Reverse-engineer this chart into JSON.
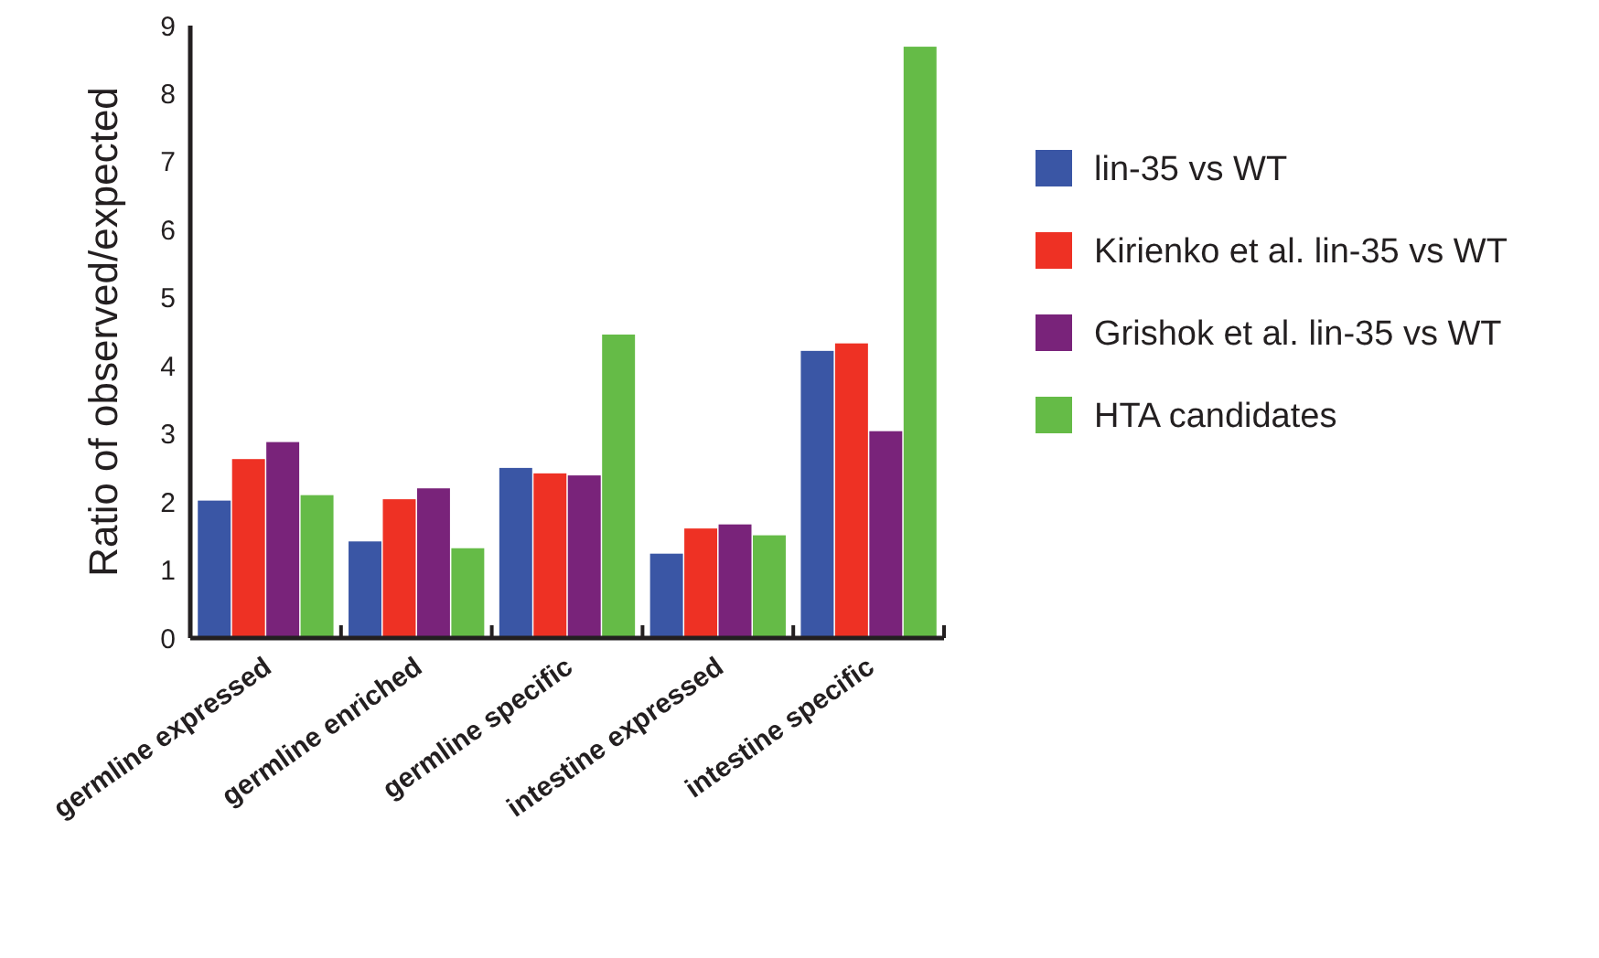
{
  "chart_data": {
    "type": "bar",
    "ylabel": "Ratio of observed/expected",
    "categories": [
      "germline expressed",
      "germline enriched",
      "germline specific",
      "intestine expressed",
      "intestine specific"
    ],
    "series": [
      {
        "name": "lin-35 vs WT",
        "color": "#3a56a5",
        "values": [
          2.02,
          1.42,
          2.5,
          1.24,
          4.22
        ]
      },
      {
        "name": "Kirienko et al. lin-35 vs WT",
        "color": "#ee3124",
        "values": [
          2.63,
          2.04,
          2.42,
          1.61,
          4.33
        ]
      },
      {
        "name": "Grishok et al. lin-35 vs WT",
        "color": "#79237a",
        "values": [
          2.88,
          2.2,
          2.39,
          1.67,
          3.04
        ]
      },
      {
        "name": "HTA candidates",
        "color": "#65bb47",
        "values": [
          2.1,
          1.32,
          4.46,
          1.51,
          8.69
        ]
      }
    ],
    "ylim": [
      0,
      9
    ],
    "yticks": [
      0,
      1,
      2,
      3,
      4,
      5,
      6,
      7,
      8,
      9
    ],
    "legend": "right",
    "grid": false
  }
}
